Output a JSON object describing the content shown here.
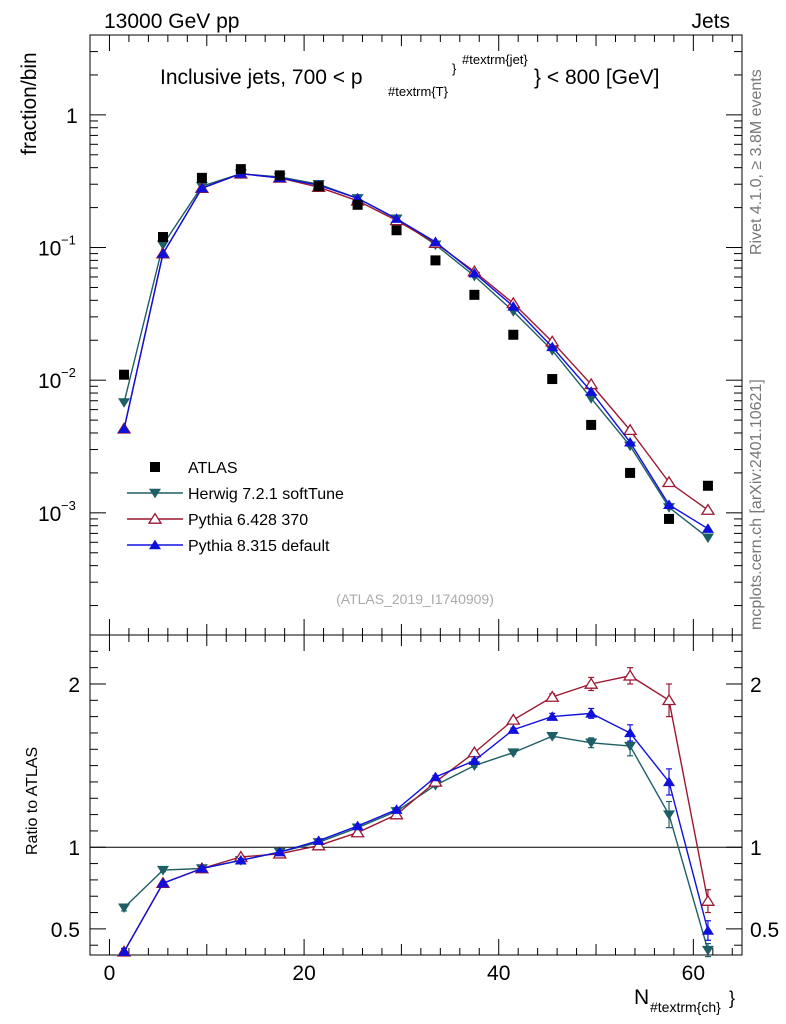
{
  "header": {
    "energy_label": "13000 GeV pp",
    "process_label": "Jets",
    "ylabel": "fraction/bin",
    "title_main": "Inclusive jets, 700 < p",
    "title_sub": "#textrm{T}",
    "title_sup": "#textrm{jet}",
    "title_tail": "} < 800 [GeV]",
    "side_version": "Rivet 4.1.0, ≥ 3.8M events",
    "side_source": "mcplots.cern.ch [arXiv:2401.10621]",
    "analysis_id": "(ATLAS_2019_I1740909)",
    "ratio_ylabel": "Ratio to ATLAS",
    "xlabel_main": "N",
    "xlabel_sub": "#textrm{ch}",
    "xlabel_tail": "}"
  },
  "colors": {
    "data": "#000000",
    "herwig": "#1e5f66",
    "pythia6": "#9b1830",
    "pythia8": "#1010dd"
  },
  "chart_data": [
    {
      "type": "line",
      "panel": "main",
      "yscale": "log",
      "xlim": [
        -2,
        65
      ],
      "ylim": [
        0.00012,
        4
      ],
      "ylabel": "fraction/bin",
      "yticks": [
        {
          "value": 1,
          "label": "1"
        },
        {
          "value": 0.1,
          "label": "10",
          "exp": "−1"
        },
        {
          "value": 0.01,
          "label": "10",
          "exp": "−2"
        },
        {
          "value": 0.001,
          "label": "10",
          "exp": "−3"
        }
      ],
      "x": [
        1.5,
        5.5,
        9.5,
        13.5,
        17.5,
        21.5,
        25.5,
        29.5,
        33.5,
        37.5,
        41.5,
        45.5,
        49.5,
        53.5,
        57.5,
        61.5
      ],
      "legend": [
        "ATLAS",
        "Herwig 7.2.1 softTune",
        "Pythia 6.428 370",
        "Pythia 8.315 default"
      ],
      "series": [
        {
          "name": "ATLAS",
          "key": "data",
          "marker": "square",
          "values": [
            0.011,
            0.12,
            0.335,
            0.39,
            0.35,
            0.29,
            0.21,
            0.135,
            0.08,
            0.044,
            0.022,
            0.0102,
            0.0046,
            0.002,
            0.0009,
            0.0016
          ]
        },
        {
          "name": "Herwig 7.2.1 softTune",
          "key": "herwig",
          "marker": "tri-down",
          "values": [
            0.0068,
            0.105,
            0.29,
            0.36,
            0.34,
            0.3,
            0.235,
            0.165,
            0.105,
            0.061,
            0.033,
            0.0168,
            0.0073,
            0.0032,
            0.0011,
            0.00065
          ]
        },
        {
          "name": "Pythia 6.428 370",
          "key": "pythia6",
          "marker": "tri-up-open",
          "values": [
            0.0043,
            0.09,
            0.28,
            0.36,
            0.335,
            0.285,
            0.225,
            0.16,
            0.108,
            0.066,
            0.038,
            0.0195,
            0.0093,
            0.0042,
            0.0017,
            0.00105
          ]
        },
        {
          "name": "Pythia 8.315 default",
          "key": "pythia8",
          "marker": "tri-up",
          "values": [
            0.0043,
            0.09,
            0.28,
            0.36,
            0.335,
            0.295,
            0.235,
            0.165,
            0.11,
            0.064,
            0.036,
            0.0178,
            0.0082,
            0.0034,
            0.00115,
            0.00076
          ]
        }
      ]
    },
    {
      "type": "line",
      "panel": "ratio",
      "xlim": [
        -2,
        65
      ],
      "ylim": [
        0.34,
        2.3
      ],
      "ylabel": "Ratio to ATLAS",
      "yticks": [
        {
          "value": 2,
          "label": "2"
        },
        {
          "value": 1,
          "label": "1"
        },
        {
          "value": 0.5,
          "label": "0.5"
        }
      ],
      "xticks": [
        {
          "value": 0,
          "label": "0"
        },
        {
          "value": 20,
          "label": "20"
        },
        {
          "value": 40,
          "label": "40"
        },
        {
          "value": 60,
          "label": "60"
        }
      ],
      "reference_line": 1,
      "x": [
        1.5,
        5.5,
        9.5,
        13.5,
        17.5,
        21.5,
        25.5,
        29.5,
        33.5,
        37.5,
        41.5,
        45.5,
        49.5,
        53.5,
        57.5,
        61.5
      ],
      "series": [
        {
          "name": "Herwig 7.2.1 softTune",
          "key": "herwig",
          "marker": "tri-down",
          "values": [
            0.63,
            0.86,
            0.87,
            0.92,
            0.97,
            1.03,
            1.12,
            1.22,
            1.38,
            1.5,
            1.58,
            1.68,
            1.64,
            1.62,
            1.2,
            0.37
          ],
          "errors": [
            0.02,
            0.01,
            0.01,
            0.01,
            0.01,
            0.01,
            0.01,
            0.01,
            0.01,
            0.01,
            0.01,
            0.01,
            0.03,
            0.06,
            0.08,
            0.04
          ]
        },
        {
          "name": "Pythia 6.428 370",
          "key": "pythia6",
          "marker": "tri-up-open",
          "values": [
            0.36,
            0.78,
            0.87,
            0.94,
            0.96,
            1.01,
            1.09,
            1.2,
            1.4,
            1.58,
            1.78,
            1.92,
            2.0,
            2.05,
            1.9,
            0.67
          ],
          "errors": [
            0.02,
            0.01,
            0.01,
            0.01,
            0.01,
            0.01,
            0.01,
            0.01,
            0.01,
            0.01,
            0.01,
            0.02,
            0.04,
            0.05,
            0.1,
            0.07
          ]
        },
        {
          "name": "Pythia 8.315 default",
          "key": "pythia8",
          "marker": "tri-up",
          "values": [
            0.36,
            0.78,
            0.87,
            0.92,
            0.97,
            1.04,
            1.13,
            1.23,
            1.43,
            1.53,
            1.72,
            1.8,
            1.82,
            1.7,
            1.4,
            0.49
          ],
          "errors": [
            0.02,
            0.01,
            0.01,
            0.01,
            0.01,
            0.01,
            0.01,
            0.01,
            0.01,
            0.01,
            0.01,
            0.02,
            0.03,
            0.05,
            0.08,
            0.06
          ]
        }
      ]
    }
  ]
}
